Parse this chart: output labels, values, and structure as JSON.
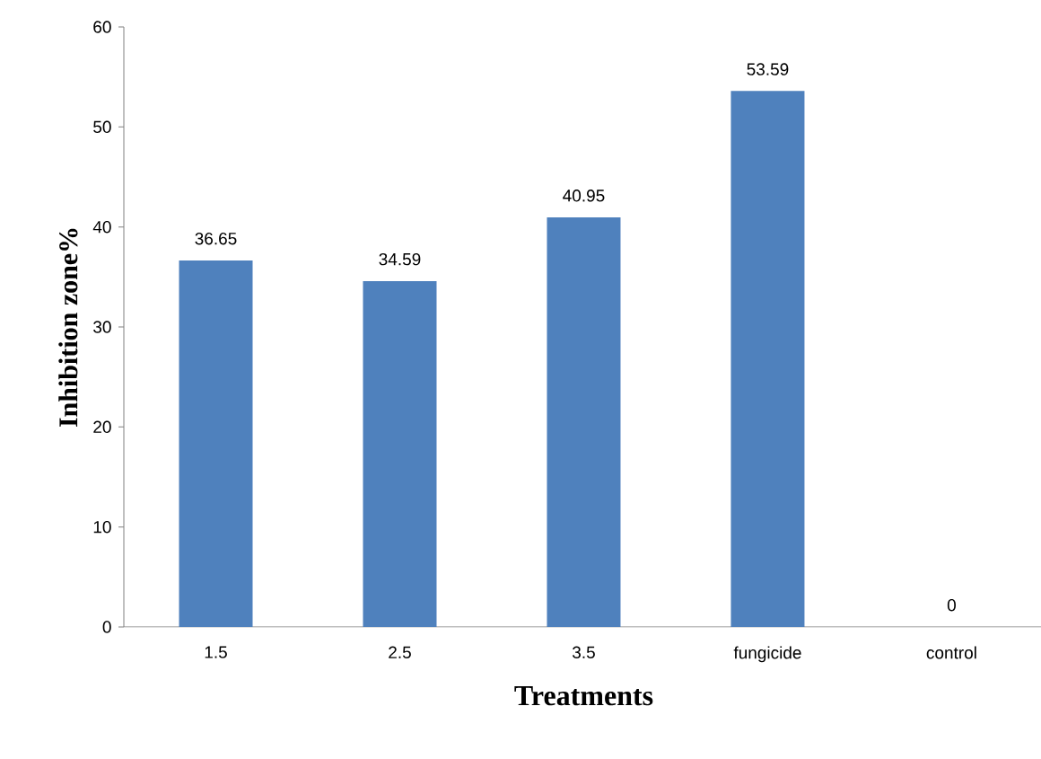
{
  "chart_data": {
    "type": "bar",
    "xlabel": "Treatments",
    "ylabel": "Inhibition zone%",
    "categories": [
      "1.5",
      "2.5",
      "3.5",
      "fungicide",
      "control"
    ],
    "values": [
      36.65,
      34.59,
      40.95,
      53.59,
      0
    ],
    "color": "#4f81bd",
    "ylim": [
      0,
      60
    ],
    "yticks": [
      0,
      10,
      20,
      30,
      40,
      50,
      60
    ],
    "data_labels": true,
    "grid": false
  }
}
